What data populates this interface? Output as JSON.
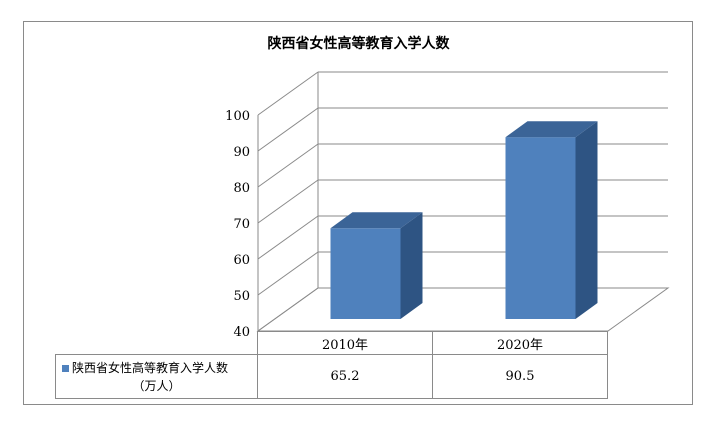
{
  "chart_data": {
    "type": "bar",
    "title": "陕西省女性高等教育入学人数",
    "categories": [
      "2010年",
      "2020年"
    ],
    "series": [
      {
        "name": "陕西省女性高等教育入学人数",
        "unit": "（万人）",
        "values": [
          65.2,
          90.5
        ],
        "color": "#4f81bd"
      }
    ],
    "ylim": [
      40,
      100
    ],
    "yticks": [
      40,
      50,
      60,
      70,
      80,
      90,
      100
    ],
    "grid": true,
    "style": "3d-column",
    "data_table": true
  }
}
